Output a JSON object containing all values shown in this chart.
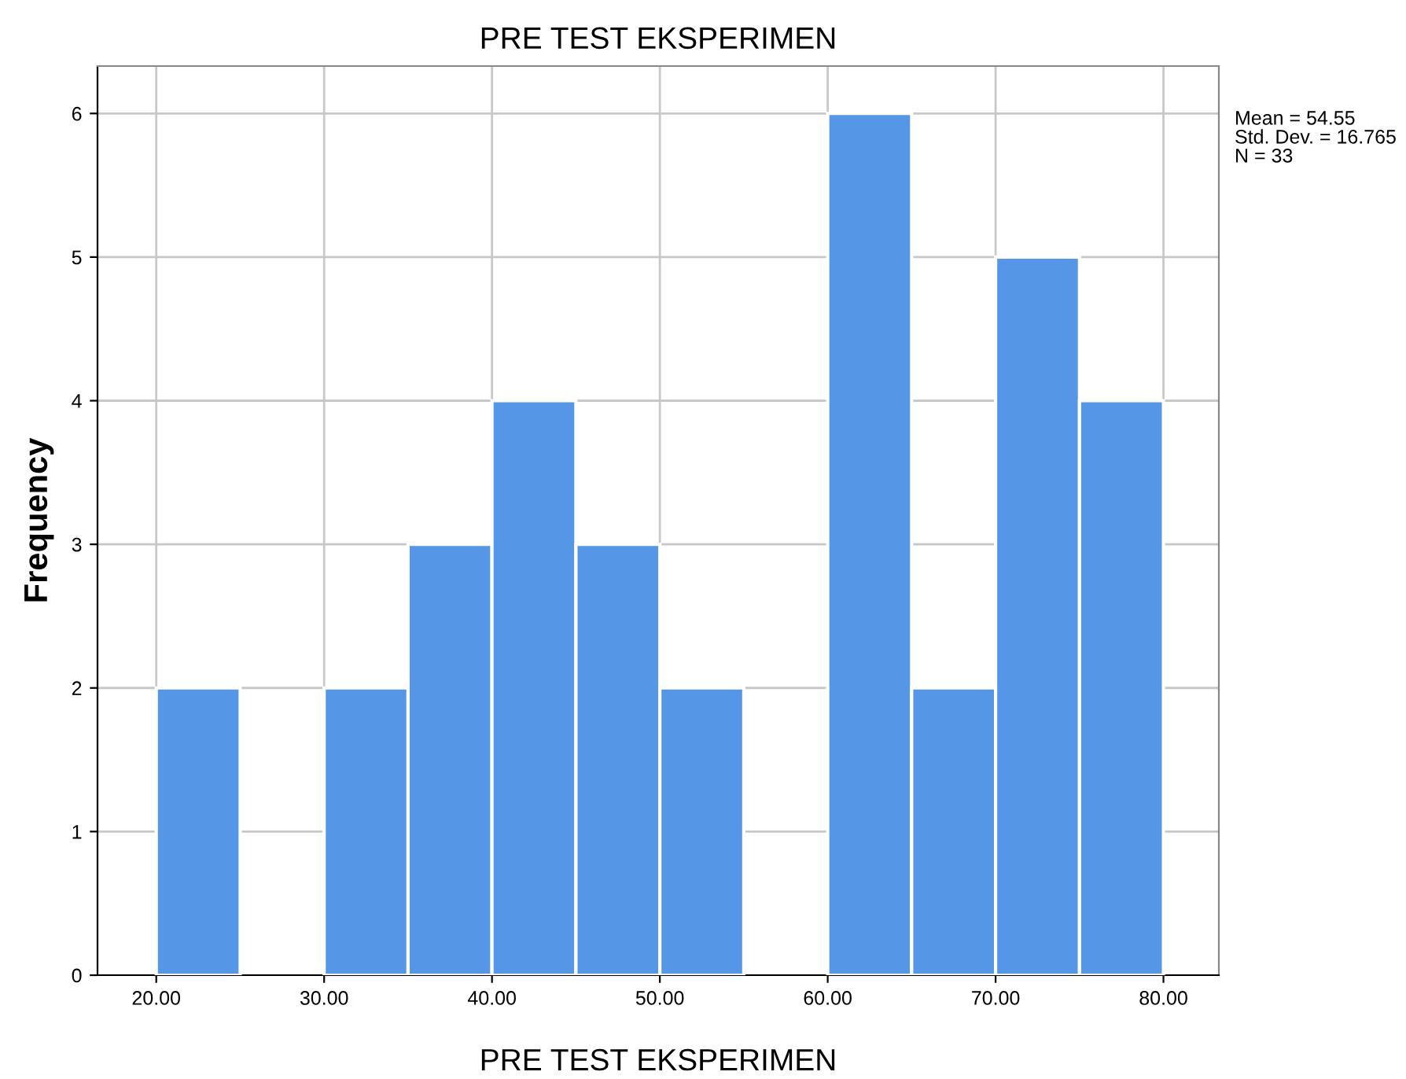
{
  "chart_data": {
    "type": "histogram",
    "title": "PRE TEST EKSPERIMEN",
    "xlabel": "PRE TEST EKSPERIMEN",
    "ylabel": "Frequency",
    "bins": [
      20,
      25,
      30,
      35,
      40,
      45,
      50,
      55,
      60,
      65,
      70,
      75,
      80
    ],
    "values": [
      2,
      0,
      2,
      3,
      4,
      3,
      2,
      0,
      6,
      2,
      5,
      4
    ],
    "color": "#5596e6",
    "xlim": [
      16.5,
      83.3
    ],
    "ylim": [
      0,
      6.33
    ],
    "xticks": [
      {
        "value": 20,
        "label": "20.00"
      },
      {
        "value": 30,
        "label": "30.00"
      },
      {
        "value": 40,
        "label": "40.00"
      },
      {
        "value": 50,
        "label": "50.00"
      },
      {
        "value": 60,
        "label": "60.00"
      },
      {
        "value": 70,
        "label": "70.00"
      },
      {
        "value": 80,
        "label": "80.00"
      }
    ],
    "yticks": [
      0,
      1,
      2,
      3,
      4,
      5,
      6
    ],
    "grid": true,
    "annotations": [
      "Mean = 54.55",
      "Std. Dev. = 16.765",
      "N = 33"
    ]
  }
}
